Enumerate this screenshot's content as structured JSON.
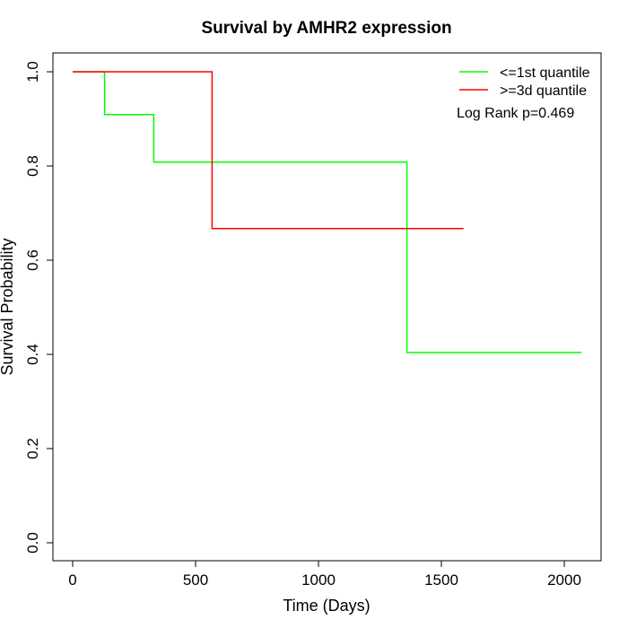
{
  "chart_data": {
    "type": "line",
    "step": true,
    "title": "Survival by AMHR2 expression",
    "xlabel": "Time (Days)",
    "ylabel": "Survival Probability",
    "xlim": [
      0,
      2070
    ],
    "ylim": [
      0,
      1
    ],
    "xticks": [
      0,
      500,
      1000,
      1500,
      2000
    ],
    "yticks": [
      0.0,
      0.2,
      0.4,
      0.6,
      0.8,
      1.0
    ],
    "ytick_labels": [
      "0.0",
      "0.2",
      "0.4",
      "0.6",
      "0.8",
      "1.0"
    ],
    "grid": false,
    "legend_position": "top-right",
    "annotation": "Log Rank p=0.469",
    "series": [
      {
        "name": "<=1st quantile",
        "color": "#00ff00",
        "x": [
          0,
          130,
          130,
          330,
          330,
          1360,
          1360,
          2070
        ],
        "y": [
          1.0,
          1.0,
          0.909,
          0.909,
          0.808,
          0.808,
          0.404,
          0.404
        ]
      },
      {
        "name": ">=3d quantile",
        "color": "#ff0000",
        "x": [
          0,
          567,
          567,
          1590
        ],
        "y": [
          1.0,
          1.0,
          0.667,
          0.667
        ]
      }
    ]
  }
}
